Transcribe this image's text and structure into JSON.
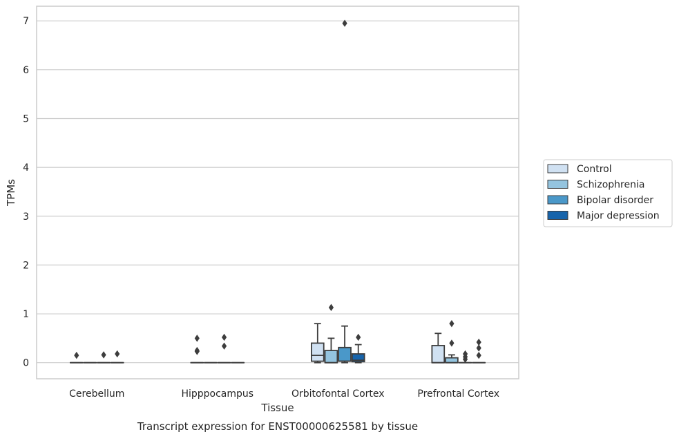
{
  "chart_data": {
    "type": "boxplot",
    "xlabel": "Tissue",
    "ylabel": "TPMs",
    "caption": "Transcript expression for ENST00000625581 by tissue",
    "categories": [
      "Cerebellum",
      "Hipppocampus",
      "Orbitofontal Cortex",
      "Prefrontal Cortex"
    ],
    "ylim": [
      -0.33,
      7.3
    ],
    "yticks": [
      0,
      1,
      2,
      3,
      4,
      5,
      6,
      7
    ],
    "grid": "horizontal",
    "legend_position": "right",
    "series": [
      {
        "name": "Control",
        "color": "#d0e1f2",
        "boxes": [
          {
            "whislo": 0,
            "q1": 0,
            "med": 0,
            "q3": 0,
            "whishi": 0,
            "fliers": [
              0.15
            ]
          },
          {
            "whislo": 0,
            "q1": 0,
            "med": 0,
            "q3": 0,
            "whishi": 0,
            "fliers": [
              0.5,
              0.25,
              0.23
            ]
          },
          {
            "whislo": 0,
            "q1": 0.03,
            "med": 0.15,
            "q3": 0.4,
            "whishi": 0.8,
            "fliers": []
          },
          {
            "whislo": 0,
            "q1": 0,
            "med": 0,
            "q3": 0.35,
            "whishi": 0.6,
            "fliers": []
          }
        ]
      },
      {
        "name": "Schizophrenia",
        "color": "#94c4df",
        "boxes": [
          {
            "whislo": 0,
            "q1": 0,
            "med": 0,
            "q3": 0,
            "whishi": 0,
            "fliers": []
          },
          {
            "whislo": 0,
            "q1": 0,
            "med": 0,
            "q3": 0,
            "whishi": 0,
            "fliers": []
          },
          {
            "whislo": 0,
            "q1": 0,
            "med": 0,
            "q3": 0.25,
            "whishi": 0.5,
            "fliers": [
              1.13
            ]
          },
          {
            "whislo": 0,
            "q1": 0,
            "med": 0,
            "q3": 0.1,
            "whishi": 0.16,
            "fliers": [
              0.8,
              0.4
            ]
          }
        ]
      },
      {
        "name": "Bipolar disorder",
        "color": "#4a98c9",
        "boxes": [
          {
            "whislo": 0,
            "q1": 0,
            "med": 0,
            "q3": 0,
            "whishi": 0,
            "fliers": [
              0.16
            ]
          },
          {
            "whislo": 0,
            "q1": 0,
            "med": 0,
            "q3": 0,
            "whishi": 0,
            "fliers": [
              0.52,
              0.34
            ]
          },
          {
            "whislo": 0,
            "q1": 0.03,
            "med": 0.03,
            "q3": 0.31,
            "whishi": 0.75,
            "fliers": [
              6.95
            ]
          },
          {
            "whislo": 0,
            "q1": 0,
            "med": 0,
            "q3": 0,
            "whishi": 0,
            "fliers": [
              0.18,
              0.12,
              0.07
            ]
          }
        ]
      },
      {
        "name": "Major depression",
        "color": "#1764ab",
        "boxes": [
          {
            "whislo": 0,
            "q1": 0,
            "med": 0,
            "q3": 0,
            "whishi": 0,
            "fliers": [
              0.18
            ]
          },
          {
            "whislo": 0,
            "q1": 0,
            "med": 0,
            "q3": 0,
            "whishi": 0,
            "fliers": []
          },
          {
            "whislo": 0,
            "q1": 0.02,
            "med": 0.05,
            "q3": 0.18,
            "whishi": 0.37,
            "fliers": [
              0.52
            ]
          },
          {
            "whislo": 0,
            "q1": 0,
            "med": 0,
            "q3": 0,
            "whishi": 0,
            "fliers": [
              0.42,
              0.3,
              0.15
            ]
          }
        ]
      }
    ]
  }
}
